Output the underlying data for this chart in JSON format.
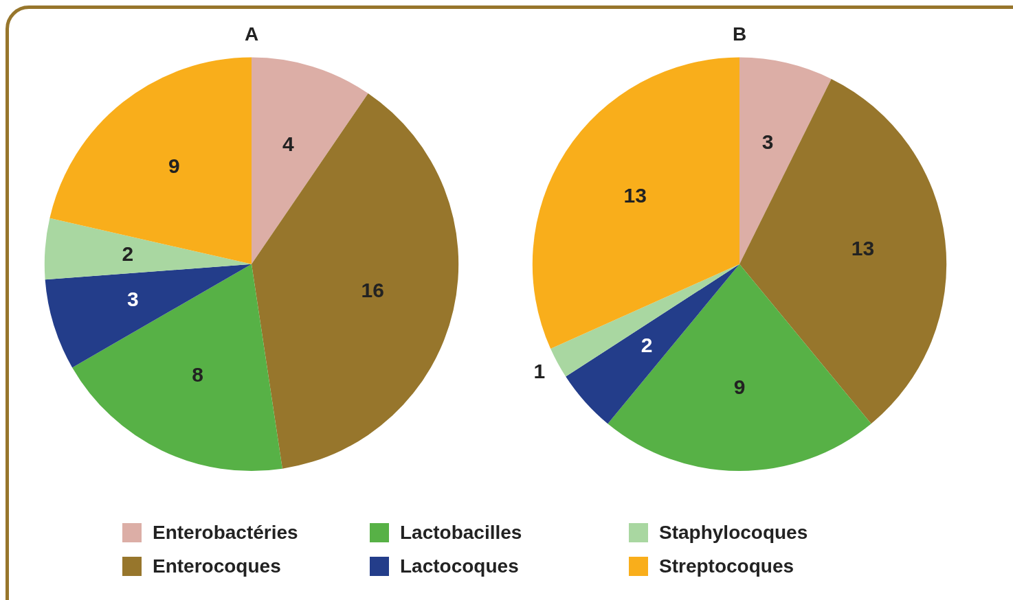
{
  "chart_data": [
    {
      "type": "pie",
      "title": "A",
      "categories": [
        "Enterobactéries",
        "Enterocoques",
        "Lactobacilles",
        "Lactocoques",
        "Staphylocoques",
        "Streptocoques"
      ],
      "values": [
        4,
        16,
        8,
        3,
        2,
        9
      ],
      "colors": [
        "#dcaea6",
        "#97762c",
        "#57b146",
        "#233d8a",
        "#a9d7a1",
        "#f9ae1b"
      ],
      "data_labels": true,
      "legend": "bottom"
    },
    {
      "type": "pie",
      "title": "B",
      "categories": [
        null,
        null,
        null,
        null,
        null,
        null
      ],
      "values": [
        3,
        13,
        9,
        2,
        1,
        13
      ],
      "colors": [
        "#dcaea6",
        "#97762c",
        "#57b146",
        "#233d8a",
        "#a9d7a1",
        "#f9ae1b"
      ],
      "data_labels": true
    }
  ]
}
